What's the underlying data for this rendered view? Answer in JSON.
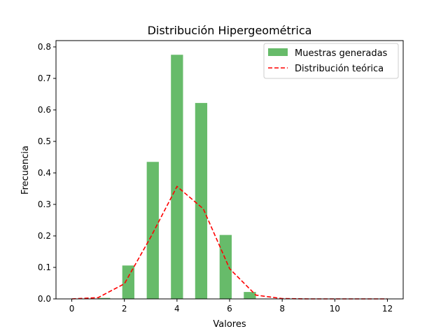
{
  "chart_data": {
    "type": "bar",
    "title": "Distribución Hipergeométrica",
    "xlabel": "Valores",
    "ylabel": "Frecuencia",
    "xlim": [
      -0.6,
      12.6
    ],
    "ylim": [
      0,
      0.82
    ],
    "xticks": [
      0,
      2,
      4,
      6,
      8,
      10,
      12
    ],
    "yticks": [
      0.0,
      0.1,
      0.2,
      0.3,
      0.4,
      0.5,
      0.6,
      0.7,
      0.8
    ],
    "grid": false,
    "legend_position": "top-right",
    "series": [
      {
        "name": "Muestras generadas",
        "kind": "bar",
        "color": "#4caf50",
        "bars": [
          {
            "x0": 1.0,
            "x1": 1.46,
            "value": 0.003
          },
          {
            "x0": 1.92,
            "x1": 2.38,
            "value": 0.106
          },
          {
            "x0": 2.85,
            "x1": 3.31,
            "value": 0.435
          },
          {
            "x0": 3.77,
            "x1": 4.23,
            "value": 0.775
          },
          {
            "x0": 4.69,
            "x1": 5.15,
            "value": 0.622
          },
          {
            "x0": 5.62,
            "x1": 6.08,
            "value": 0.203
          },
          {
            "x0": 6.54,
            "x1": 7.0,
            "value": 0.022
          }
        ]
      },
      {
        "name": "Distribución teórica",
        "kind": "line",
        "color": "#ff0000",
        "dashed": true,
        "x": [
          0,
          1,
          2,
          3,
          4,
          5,
          6,
          7,
          8,
          9,
          10,
          11,
          12
        ],
        "values": [
          0.0,
          0.004,
          0.048,
          0.196,
          0.357,
          0.286,
          0.096,
          0.012,
          0.001,
          0.0,
          0.0,
          0.0,
          0.0
        ]
      }
    ]
  }
}
